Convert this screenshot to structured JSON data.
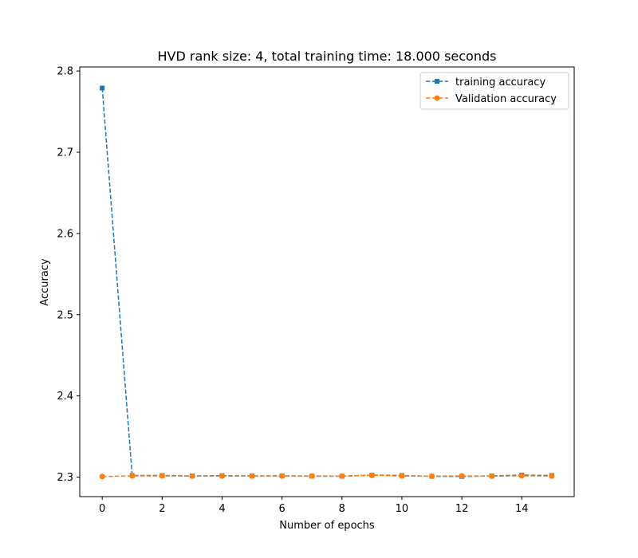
{
  "chart_data": {
    "type": "line",
    "title": "HVD rank size: 4, total training time: 18.000 seconds",
    "xlabel": "Number of epochs",
    "ylabel": "Accuracy",
    "xlim": [
      -0.75,
      15.75
    ],
    "ylim": [
      2.276,
      2.805
    ],
    "xticks": [
      0,
      2,
      4,
      6,
      8,
      10,
      12,
      14
    ],
    "yticks": [
      2.3,
      2.4,
      2.5,
      2.6,
      2.7,
      2.8
    ],
    "grid": false,
    "legend_position": "top-right",
    "x": [
      0,
      1,
      2,
      3,
      4,
      5,
      6,
      7,
      8,
      9,
      10,
      11,
      12,
      13,
      14,
      15
    ],
    "series": [
      {
        "name": "training accuracy",
        "color": "#1f77b4",
        "marker": "square",
        "linestyle": "dashed",
        "values": [
          2.779,
          2.302,
          2.302,
          2.3015,
          2.3018,
          2.3015,
          2.3016,
          2.3012,
          2.3011,
          2.3025,
          2.302,
          2.301,
          2.3008,
          2.3015,
          2.3025,
          2.302
        ]
      },
      {
        "name": "Validation accuracy",
        "color": "#ff7f0e",
        "marker": "circle",
        "linestyle": "dashed",
        "values": [
          2.3008,
          2.3015,
          2.3015,
          2.3012,
          2.3013,
          2.3013,
          2.3014,
          2.3014,
          2.3013,
          2.3022,
          2.3014,
          2.3012,
          2.3015,
          2.3011,
          2.3016,
          2.3013
        ]
      }
    ]
  }
}
